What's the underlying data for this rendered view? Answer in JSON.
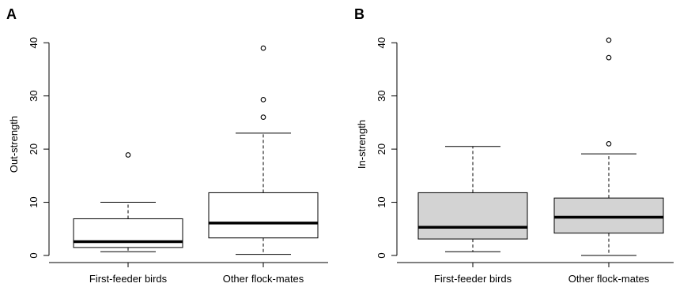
{
  "chart_data": [
    {
      "type": "box",
      "panel_label": "A",
      "ylabel": "Out-strength",
      "ylim": [
        0,
        43
      ],
      "yticks": [
        0,
        10,
        20,
        30,
        40
      ],
      "box_fill": "#ffffff",
      "categories": [
        "First-feeder birds",
        "Other flock-mates"
      ],
      "boxes": [
        {
          "whisker_low": 0.7,
          "q1": 1.5,
          "median": 2.6,
          "q3": 6.9,
          "whisker_high": 10.0,
          "outliers": [
            18.9
          ]
        },
        {
          "whisker_low": 0.2,
          "q1": 3.3,
          "median": 6.1,
          "q3": 11.8,
          "whisker_high": 23.0,
          "outliers": [
            26.0,
            29.3,
            39.0
          ]
        }
      ]
    },
    {
      "type": "box",
      "panel_label": "B",
      "ylabel": "In-strength",
      "ylim": [
        0,
        43
      ],
      "yticks": [
        0,
        10,
        20,
        30,
        40
      ],
      "box_fill": "#d3d3d3",
      "categories": [
        "First-feeder birds",
        "Other flock-mates"
      ],
      "boxes": [
        {
          "whisker_low": 0.7,
          "q1": 3.1,
          "median": 5.3,
          "q3": 11.8,
          "whisker_high": 20.5,
          "outliers": []
        },
        {
          "whisker_low": 0.0,
          "q1": 4.2,
          "median": 7.2,
          "q3": 10.8,
          "whisker_high": 19.1,
          "outliers": [
            21.0,
            37.2,
            40.5
          ]
        }
      ]
    }
  ]
}
